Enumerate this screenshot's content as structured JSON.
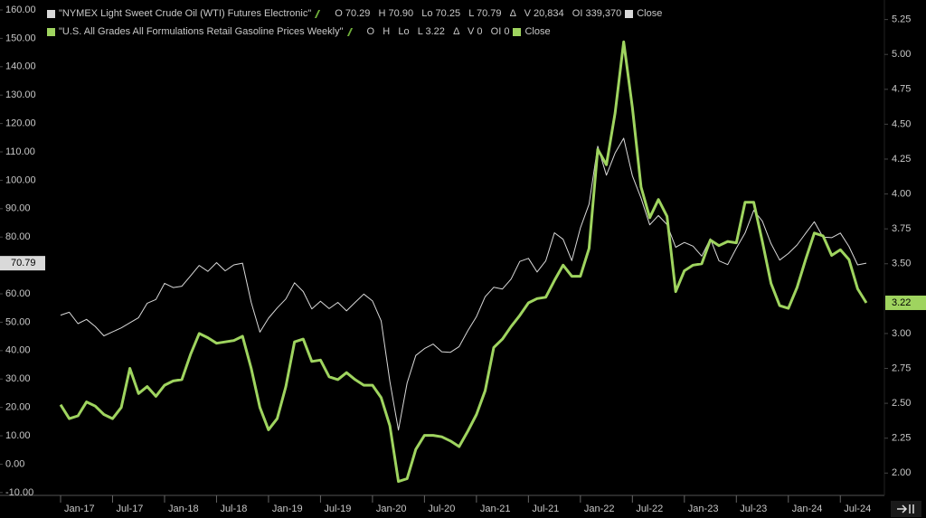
{
  "chart_data": {
    "type": "line",
    "categories": [
      "Jan-17",
      null,
      null,
      null,
      null,
      null,
      "Jul-17",
      null,
      null,
      null,
      null,
      null,
      "Jan-18",
      null,
      null,
      null,
      null,
      null,
      "Jul-18",
      null,
      null,
      null,
      null,
      null,
      "Jan-19",
      null,
      null,
      null,
      null,
      null,
      "Jul-19",
      null,
      null,
      null,
      null,
      null,
      "Jan-20",
      null,
      null,
      null,
      null,
      null,
      "Jul-20",
      null,
      null,
      null,
      null,
      null,
      "Jan-21",
      null,
      null,
      null,
      null,
      null,
      "Jul-21",
      null,
      null,
      null,
      null,
      null,
      "Jan-22",
      null,
      null,
      null,
      null,
      null,
      "Jul-22",
      null,
      null,
      null,
      null,
      null,
      "Jan-23",
      null,
      null,
      null,
      null,
      null,
      "Jul-23",
      null,
      null,
      null,
      null,
      null,
      "Jan-24",
      null,
      null,
      null,
      null,
      null,
      "Jul-24",
      null,
      null,
      null
    ],
    "series": [
      {
        "name": "\"NYMEX Light Sweet Crude Oil (WTI) Futures Electronic\"",
        "stats": "O 70.29   H 70.90   Lo 70.25   L 70.79   Δ   V 20,834   OI 339,370",
        "close_label": "Close",
        "color": "#d9d9d9",
        "axis": "y",
        "last_value": 70.79,
        "values": [
          52.5,
          53.5,
          49.5,
          51,
          48.5,
          45.2,
          46.6,
          48.0,
          49.8,
          51.6,
          56.7,
          58.0,
          63.7,
          62.2,
          62.7,
          66.3,
          70.0,
          67.9,
          71.0,
          68.1,
          70.2,
          70.8,
          57.0,
          46.5,
          51.4,
          55.0,
          58.2,
          63.9,
          60.8,
          54.7,
          57.4,
          54.8,
          57.0,
          54.0,
          57.0,
          59.9,
          57.5,
          50.5,
          29.2,
          12.0,
          28.6,
          38.3,
          40.7,
          42.3,
          39.6,
          39.4,
          41.4,
          47.0,
          52.0,
          59.0,
          62.3,
          61.7,
          65.2,
          71.4,
          72.5,
          67.7,
          71.6,
          81.5,
          79.2,
          71.7,
          83.2,
          91.6,
          112.0,
          101.8,
          109.6,
          114.8,
          101.6,
          93.7,
          84.3,
          87.6,
          84.4,
          76.4,
          78.1,
          76.8,
          73.3,
          79.4,
          71.6,
          70.3,
          76.1,
          81.4,
          89.4,
          85.6,
          77.7,
          71.9,
          74.2,
          77.2,
          81.3,
          85.4,
          80.0,
          79.8,
          81.4,
          76.7,
          70.2,
          70.79
        ]
      },
      {
        "name": "\"U.S. All Grades All Formulations Retail Gasoline Prices Weekly\"",
        "stats": "O   H   Lo   L 3.22   Δ   V 0   OI 0",
        "close_label": "Close",
        "color": "#9fd45f",
        "axis": "y2",
        "last_value": 3.22,
        "values": [
          2.49,
          2.39,
          2.41,
          2.51,
          2.48,
          2.42,
          2.39,
          2.47,
          2.75,
          2.57,
          2.62,
          2.55,
          2.63,
          2.66,
          2.67,
          2.85,
          3.0,
          2.97,
          2.93,
          2.94,
          2.95,
          2.98,
          2.75,
          2.47,
          2.31,
          2.39,
          2.62,
          2.94,
          2.96,
          2.8,
          2.81,
          2.69,
          2.67,
          2.72,
          2.67,
          2.63,
          2.63,
          2.54,
          2.34,
          1.94,
          1.96,
          2.17,
          2.27,
          2.27,
          2.26,
          2.23,
          2.19,
          2.3,
          2.42,
          2.59,
          2.9,
          2.96,
          3.05,
          3.13,
          3.22,
          3.25,
          3.26,
          3.38,
          3.49,
          3.41,
          3.41,
          3.61,
          4.32,
          4.21,
          4.58,
          5.09,
          4.62,
          4.05,
          3.83,
          3.96,
          3.84,
          3.3,
          3.45,
          3.49,
          3.5,
          3.67,
          3.63,
          3.66,
          3.65,
          3.94,
          3.94,
          3.66,
          3.36,
          3.2,
          3.18,
          3.33,
          3.53,
          3.72,
          3.7,
          3.56,
          3.6,
          3.53,
          3.32,
          3.22
        ]
      }
    ],
    "ylim": [
      -11,
      163.5
    ],
    "yticks": [
      {
        "value": -10,
        "label": "-10.00"
      },
      {
        "value": 0,
        "label": "0.00"
      },
      {
        "value": 10,
        "label": "10.00"
      },
      {
        "value": 20,
        "label": "20.00"
      },
      {
        "value": 30,
        "label": "30.00"
      },
      {
        "value": 40,
        "label": "40.00"
      },
      {
        "value": 50,
        "label": "50.00"
      },
      {
        "value": 60,
        "label": "60.00"
      },
      {
        "value": 80,
        "label": "80.00"
      },
      {
        "value": 90,
        "label": "90.00"
      },
      {
        "value": 100,
        "label": "100.00"
      },
      {
        "value": 110,
        "label": "110.00"
      },
      {
        "value": 120,
        "label": "120.00"
      },
      {
        "value": 130,
        "label": "130.00"
      },
      {
        "value": 140,
        "label": "140.00"
      },
      {
        "value": 150,
        "label": "150.00"
      },
      {
        "value": 160,
        "label": "160.00"
      }
    ],
    "y2lim": [
      1.84,
      5.39
    ],
    "y2ticks": [
      {
        "value": 2,
        "label": "2.00"
      },
      2.25,
      {
        "value": 2.5,
        "label": "2.50"
      },
      2.75,
      {
        "value": 3,
        "label": "3.00"
      },
      {
        "value": 3.5,
        "label": "3.50"
      },
      3.75,
      {
        "value": 4,
        "label": "4.00"
      },
      4.25,
      {
        "value": 4.5,
        "label": "4.50"
      },
      4.75,
      {
        "value": 5,
        "label": "5.00"
      },
      5.25
    ],
    "grid": false
  }
}
